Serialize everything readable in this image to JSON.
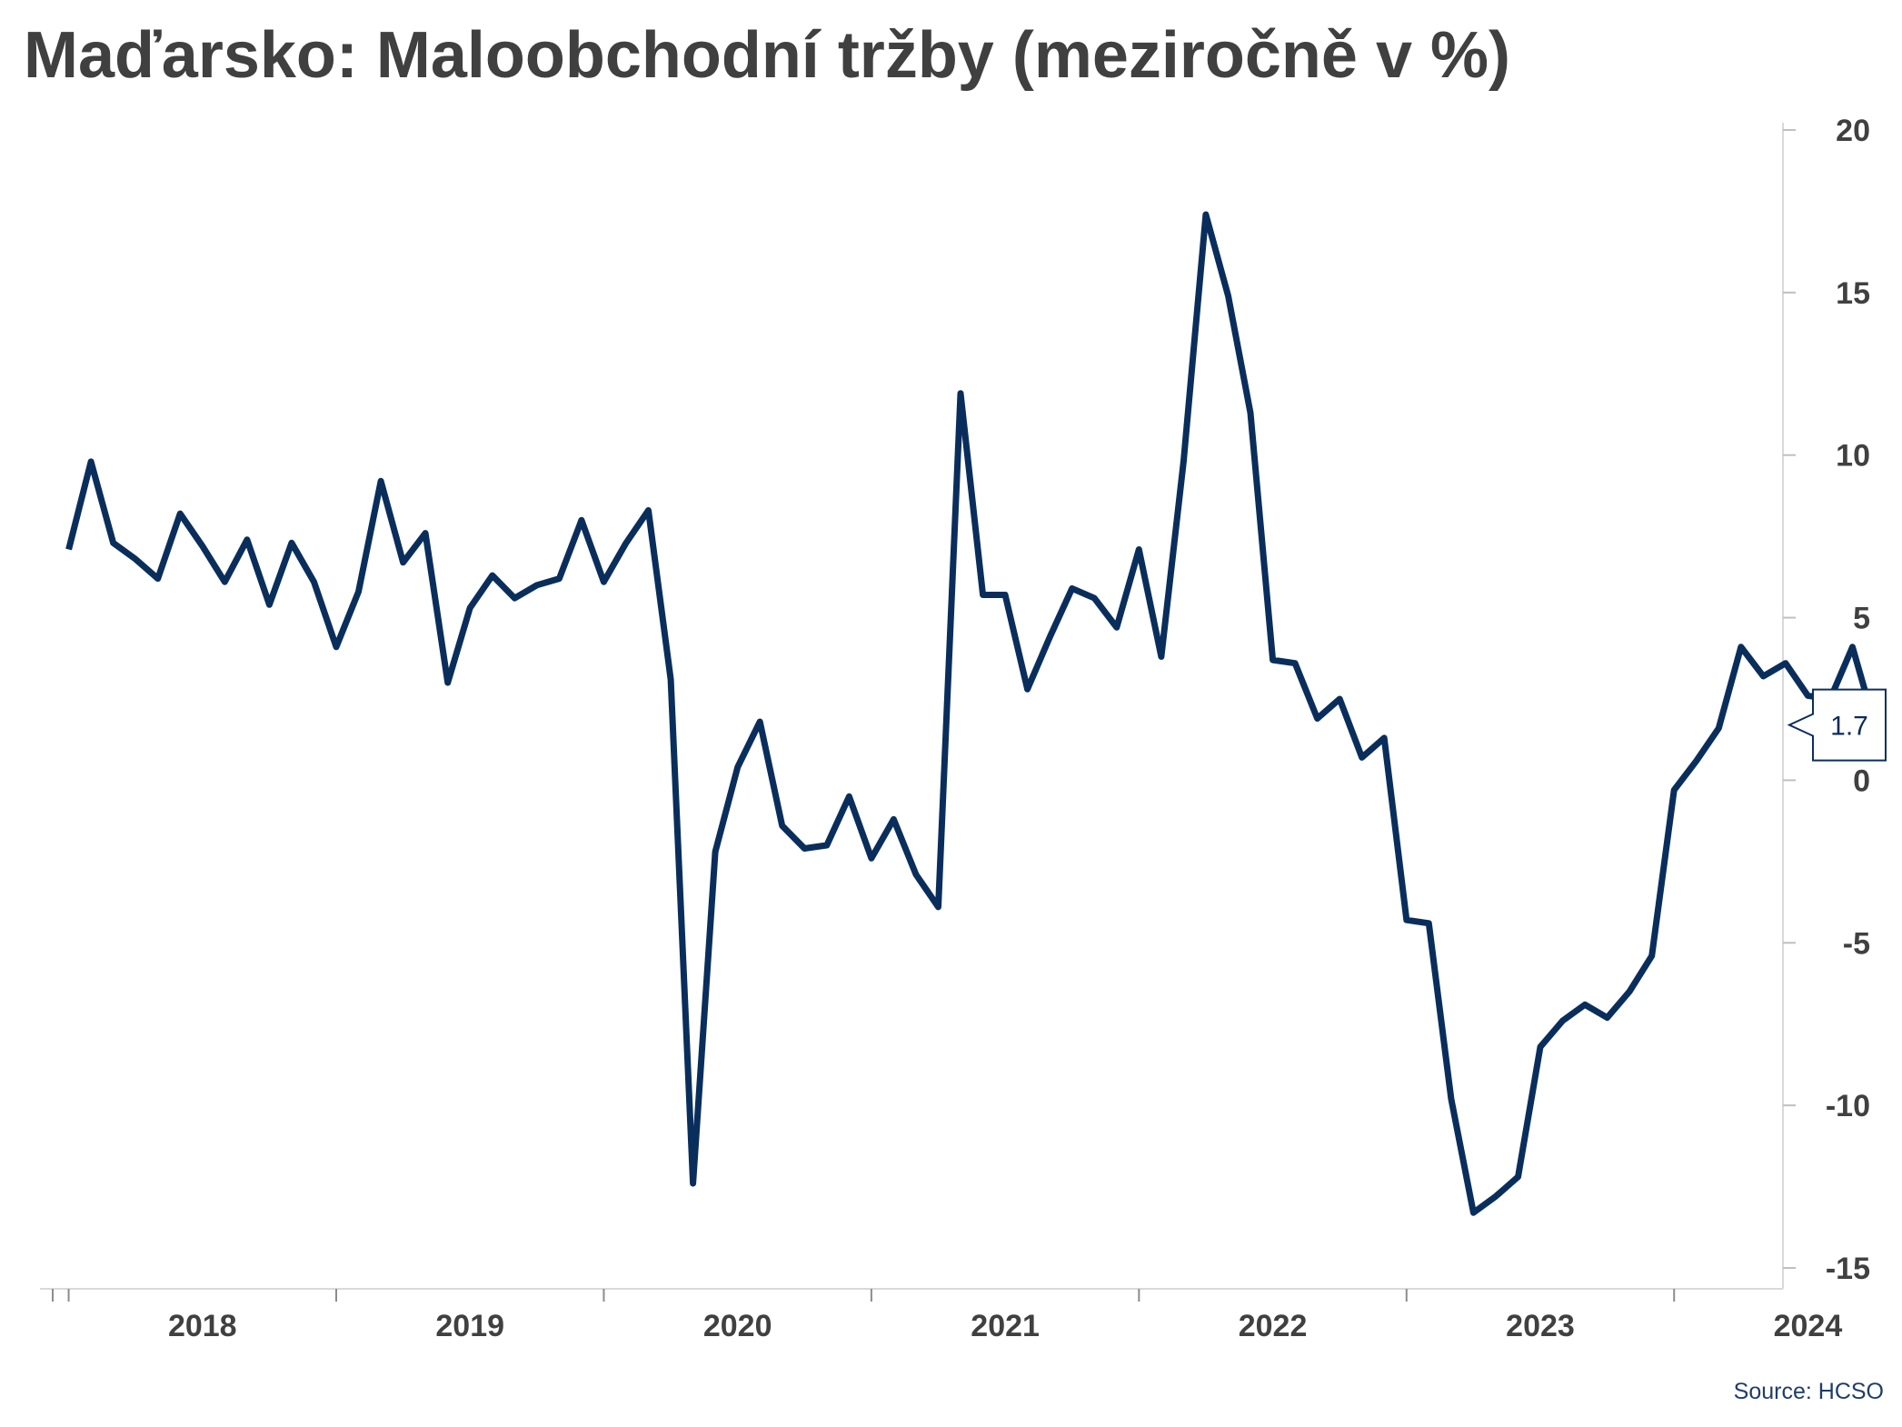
{
  "title": "Maďarsko: Maloobchodní tržby (meziročně v %)",
  "source": "Source: HCSO",
  "colors": {
    "line": "#0a2e5c",
    "text": "#404040",
    "axis": "#d9d9d9"
  },
  "chart_data": {
    "type": "line",
    "title": "Maďarsko: Maloobchodní tržby (meziročně v %)",
    "xlabel": "",
    "ylabel": "",
    "x_range": [
      2017.92,
      2024.4
    ],
    "ylim": [
      -15,
      20
    ],
    "y_ticks": [
      -15,
      -10,
      -5,
      0,
      5,
      10,
      15,
      20
    ],
    "x_tick_labels": [
      "2018",
      "2019",
      "2020",
      "2021",
      "2022",
      "2023",
      "2024"
    ],
    "x_tick_boundaries": [
      2018,
      2019,
      2020,
      2021,
      2022,
      2023,
      2024,
      2025
    ],
    "y_axis_position": "right",
    "grid": false,
    "last_value_label": "1.7",
    "series": [
      {
        "start": "2018-01",
        "values": [
          7.1,
          9.8,
          7.3,
          6.8,
          6.2,
          8.2,
          7.2,
          6.1,
          7.4,
          5.4,
          7.3,
          6.1,
          4.1,
          5.8,
          9.2,
          6.7,
          7.6,
          3.0,
          5.3,
          6.3,
          5.6,
          6.0,
          6.2,
          8.0,
          6.1,
          7.3,
          8.3,
          3.1,
          -12.4,
          -2.2,
          0.4,
          1.8,
          -1.4,
          -2.1,
          -2.0,
          -0.5,
          -2.4,
          -1.2,
          -2.9,
          -3.9,
          11.9,
          5.7,
          5.7,
          2.8,
          4.4,
          5.9,
          5.6,
          4.7,
          7.1,
          3.8,
          9.8,
          17.4,
          14.9,
          11.3,
          3.7,
          3.6,
          1.9,
          2.5,
          0.7,
          1.3,
          -4.3,
          -4.4,
          -9.8,
          -13.3,
          -12.8,
          -12.2,
          -8.2,
          -7.4,
          -6.9,
          -7.3,
          -6.5,
          -5.4,
          -0.3,
          0.6,
          1.6,
          4.1,
          3.2,
          3.6,
          2.6,
          2.5,
          4.1,
          1.7
        ]
      }
    ]
  }
}
